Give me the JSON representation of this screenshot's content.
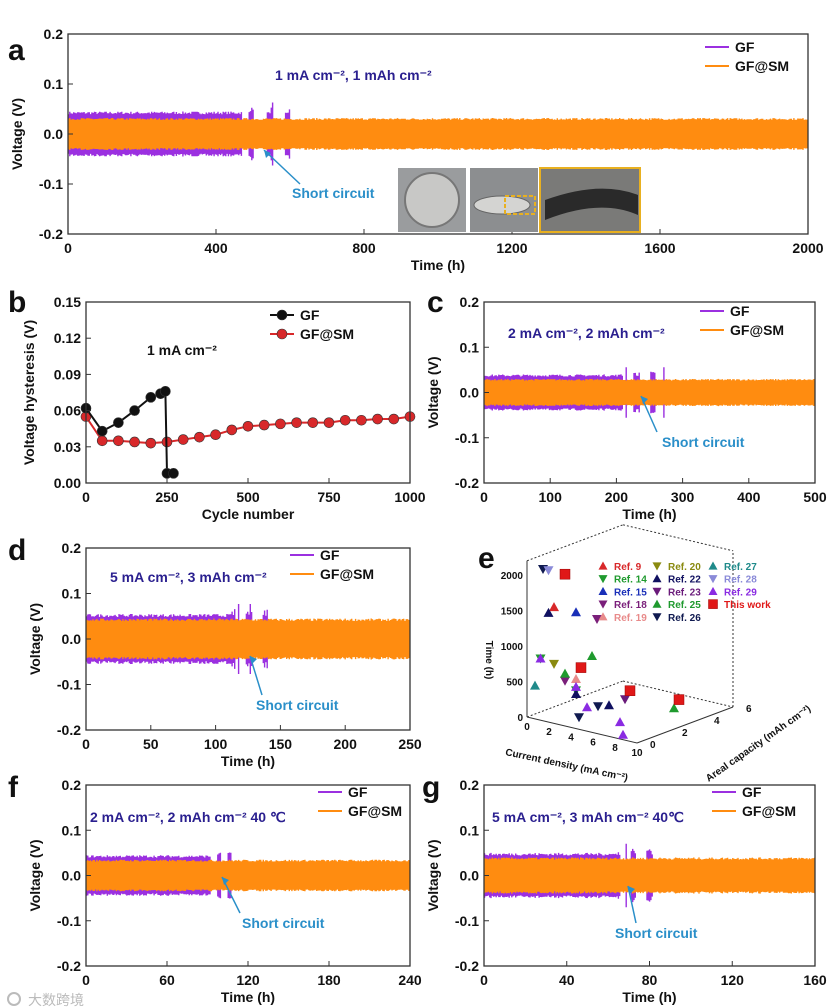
{
  "watermark": "大数跨境",
  "chart_data": [
    {
      "id": "a",
      "type": "line",
      "panel_label": "a",
      "xlabel": "Time (h)",
      "ylabel": "Voltage (V)",
      "xlim": [
        0,
        2000
      ],
      "ylim": [
        -0.2,
        0.2
      ],
      "xticks": [
        0,
        400,
        800,
        1200,
        1600,
        2000
      ],
      "yticks": [
        -0.2,
        -0.1,
        0.0,
        0.1,
        0.2
      ],
      "annotation": "1 mA cm⁻²,  1 mAh cm⁻²",
      "short_circuit_label": "Short circuit",
      "inset": "coin cell photos",
      "series": [
        {
          "name": "GF",
          "color": "#9b30e0",
          "amplitude": 0.045,
          "short_at": 470,
          "end": 600
        },
        {
          "name": "GF@SM",
          "color": "#ff8c10",
          "amplitude": 0.032,
          "end": 2000
        }
      ]
    },
    {
      "id": "b",
      "type": "line",
      "panel_label": "b",
      "xlabel": "Cycle number",
      "ylabel": "Voltage hysteresis (V)",
      "xlim": [
        0,
        1000
      ],
      "ylim": [
        0,
        0.15
      ],
      "xticks": [
        0,
        250,
        500,
        750,
        1000
      ],
      "yticks": [
        0.0,
        0.03,
        0.06,
        0.09,
        0.12,
        0.15
      ],
      "annotation": "1 mA cm⁻²",
      "series": [
        {
          "name": "GF",
          "color": "#111111",
          "x": [
            0,
            50,
            100,
            150,
            200,
            230,
            245,
            250,
            270
          ],
          "y": [
            0.062,
            0.043,
            0.05,
            0.06,
            0.071,
            0.074,
            0.076,
            0.008,
            0.008
          ]
        },
        {
          "name": "GF@SM",
          "color": "#d8282a",
          "x": [
            0,
            50,
            100,
            150,
            200,
            250,
            300,
            350,
            400,
            450,
            500,
            550,
            600,
            650,
            700,
            750,
            800,
            850,
            900,
            950,
            1000
          ],
          "y": [
            0.055,
            0.035,
            0.035,
            0.034,
            0.033,
            0.034,
            0.036,
            0.038,
            0.04,
            0.044,
            0.047,
            0.048,
            0.049,
            0.05,
            0.05,
            0.05,
            0.052,
            0.052,
            0.053,
            0.053,
            0.055
          ]
        }
      ]
    },
    {
      "id": "c",
      "type": "line",
      "panel_label": "c",
      "xlabel": "Time (h)",
      "ylabel": "Voltage (V)",
      "xlim": [
        0,
        500
      ],
      "ylim": [
        -0.2,
        0.2
      ],
      "xticks": [
        0,
        100,
        200,
        300,
        400,
        500
      ],
      "yticks": [
        -0.2,
        -0.1,
        0.0,
        0.1,
        0.2
      ],
      "annotation": "2 mA cm⁻²,  2 mAh cm⁻²",
      "short_circuit_label": "Short circuit",
      "series": [
        {
          "name": "GF",
          "color": "#9b30e0",
          "amplitude": 0.04,
          "short_at": 205,
          "end": 272
        },
        {
          "name": "GF@SM",
          "color": "#ff8c10",
          "amplitude": 0.03,
          "end": 500
        }
      ]
    },
    {
      "id": "d",
      "type": "line",
      "panel_label": "d",
      "xlabel": "Time (h)",
      "ylabel": "Voltage (V)",
      "xlim": [
        0,
        250
      ],
      "ylim": [
        -0.2,
        0.2
      ],
      "xticks": [
        0,
        50,
        100,
        150,
        200,
        250
      ],
      "yticks": [
        -0.2,
        -0.1,
        0.0,
        0.1,
        0.2
      ],
      "annotation": "5 mA cm⁻²,  3 mAh cm⁻²",
      "short_circuit_label": "Short circuit",
      "series": [
        {
          "name": "GF",
          "color": "#9b30e0",
          "amplitude": 0.055,
          "short_at": 112,
          "end": 145
        },
        {
          "name": "GF@SM",
          "color": "#ff8c10",
          "amplitude": 0.045,
          "end": 250
        }
      ]
    },
    {
      "id": "e",
      "type": "scatter3d",
      "panel_label": "e",
      "xlabel": "Current density (mA cm⁻²)",
      "ylabel": "Areal capacity (mAh cm⁻²)",
      "zlabel": "Time (h)",
      "xticks": [
        0,
        2,
        4,
        6,
        8,
        10
      ],
      "yticks": [
        0,
        2,
        4,
        6
      ],
      "zticks": [
        0,
        500,
        1000,
        1500,
        2000
      ],
      "series": [
        {
          "name": "Ref. 9",
          "color": "#d8282a",
          "marker": "up",
          "points": [
            [
              1,
              1,
              1500
            ]
          ]
        },
        {
          "name": "Ref. 14",
          "color": "#1f9a2e",
          "marker": "down",
          "points": [
            [
              0.5,
              0.5,
              800
            ],
            [
              3,
              1,
              400
            ]
          ]
        },
        {
          "name": "Ref. 15",
          "color": "#1a2fb8",
          "marker": "up",
          "points": [
            [
              3,
              1,
              1500
            ]
          ]
        },
        {
          "name": "Ref. 18",
          "color": "#7a1f7a",
          "marker": "down",
          "points": [
            [
              2,
              3,
              1200
            ],
            [
              2,
              1,
              500
            ]
          ]
        },
        {
          "name": "Ref. 19",
          "color": "#e88a8a",
          "marker": "up",
          "points": [
            [
              3,
              1,
              560
            ]
          ]
        },
        {
          "name": "Ref. 20",
          "color": "#8a8a10",
          "marker": "down",
          "points": [
            [
              1,
              1,
              700
            ]
          ]
        },
        {
          "name": "Ref. 22",
          "color": "#101060",
          "marker": "up",
          "points": [
            [
              0.5,
              1,
              1400
            ],
            [
              3,
              1,
              350
            ],
            [
              6,
              1,
              300
            ]
          ]
        },
        {
          "name": "Ref. 23",
          "color": "#6a1a7a",
          "marker": "down",
          "points": [
            [
              6,
              2,
              300
            ]
          ]
        },
        {
          "name": "Ref. 25",
          "color": "#1f9a2e",
          "marker": "up",
          "points": [
            [
              3,
              2,
              800
            ],
            [
              2,
              1,
              600
            ],
            [
              9,
              3,
              200
            ]
          ]
        },
        {
          "name": "Ref. 26",
          "color": "#101a50",
          "marker": "down",
          "points": [
            [
              4,
              0.5,
              100
            ],
            [
              5,
              1,
              250
            ],
            [
              0,
              1,
              2000
            ]
          ]
        },
        {
          "name": "Ref. 27",
          "color": "#1f8a8a",
          "marker": "up",
          "points": [
            [
              0,
              0.5,
              400
            ]
          ]
        },
        {
          "name": "Ref. 28",
          "color": "#8a8ad8",
          "marker": "down",
          "points": [
            [
              0.5,
              1,
              2000
            ]
          ]
        },
        {
          "name": "Ref. 29",
          "color": "#8a2be2",
          "marker": "up",
          "points": [
            [
              0.5,
              0.5,
              800
            ],
            [
              3,
              1,
              450
            ],
            [
              4,
              1,
              200
            ],
            [
              7,
              1,
              100
            ],
            [
              8,
              0.5,
              0
            ]
          ]
        },
        {
          "name": "This work",
          "color": "#e01818",
          "marker": "square",
          "points": [
            [
              2,
              1,
              2000
            ],
            [
              2,
              2,
              600
            ],
            [
              5,
              3,
              300
            ],
            [
              8,
              4,
              200
            ]
          ]
        }
      ]
    },
    {
      "id": "f",
      "type": "line",
      "panel_label": "f",
      "xlabel": "Time (h)",
      "ylabel": "Voltage (V)",
      "xlim": [
        0,
        240
      ],
      "ylim": [
        -0.2,
        0.2
      ],
      "xticks": [
        0,
        60,
        120,
        180,
        240
      ],
      "yticks": [
        -0.2,
        -0.1,
        0.0,
        0.1,
        0.2
      ],
      "annotation": "2 mA cm⁻²,  2 mAh cm⁻² 40 ℃",
      "short_circuit_label": "Short circuit",
      "series": [
        {
          "name": "GF",
          "color": "#9b30e0",
          "amplitude": 0.045,
          "short_at": 92,
          "end": 112
        },
        {
          "name": "GF@SM",
          "color": "#ff8c10",
          "amplitude": 0.035,
          "end": 240
        }
      ]
    },
    {
      "id": "g",
      "type": "line",
      "panel_label": "g",
      "xlabel": "Time (h)",
      "ylabel": "Voltage (V)",
      "xlim": [
        0,
        160
      ],
      "ylim": [
        -0.2,
        0.2
      ],
      "xticks": [
        0,
        40,
        80,
        120,
        160
      ],
      "yticks": [
        -0.2,
        -0.1,
        0.0,
        0.1,
        0.2
      ],
      "annotation": "5 mA cm⁻²,  3 mAh cm⁻² 40℃",
      "short_circuit_label": "Short circuit",
      "series": [
        {
          "name": "GF",
          "color": "#9b30e0",
          "amplitude": 0.05,
          "short_at": 64,
          "end": 85
        },
        {
          "name": "GF@SM",
          "color": "#ff8c10",
          "amplitude": 0.04,
          "end": 160
        }
      ]
    }
  ]
}
